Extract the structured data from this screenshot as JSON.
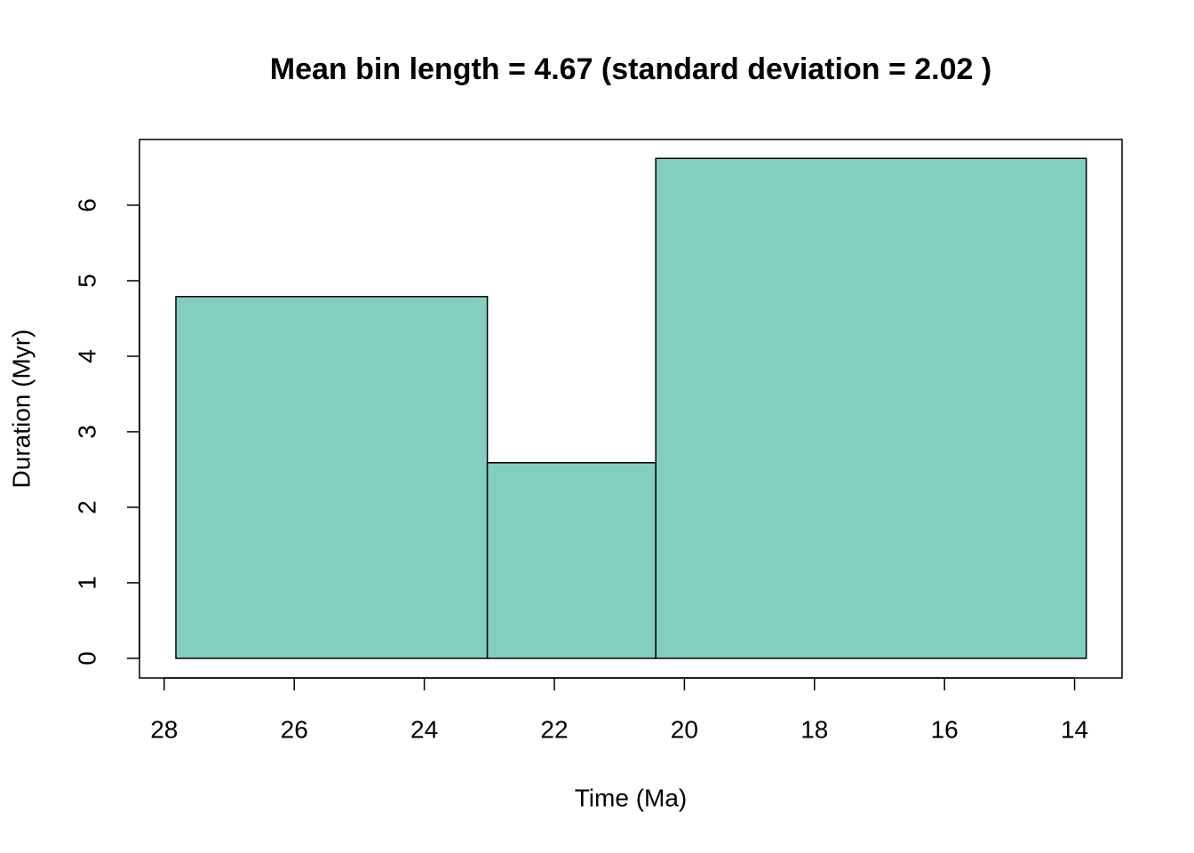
{
  "chart_data": {
    "type": "histogram",
    "title": "Mean bin length = 4.67 (standard deviation = 2.02 )",
    "x_label": "Time (Ma)",
    "y_label": "Duration (Myr)",
    "bins": [
      27.82,
      23.03,
      20.44,
      13.82
    ],
    "values": [
      4.79,
      2.59,
      6.62
    ],
    "color": "#82cec1",
    "xlim": [
      28.38,
      13.27
    ],
    "ylim": [
      -0.26,
      6.87
    ],
    "xticks": [
      28,
      26,
      24,
      22,
      20,
      18,
      16,
      14
    ],
    "yticks": [
      0,
      1,
      2,
      3,
      4,
      5,
      6
    ]
  }
}
